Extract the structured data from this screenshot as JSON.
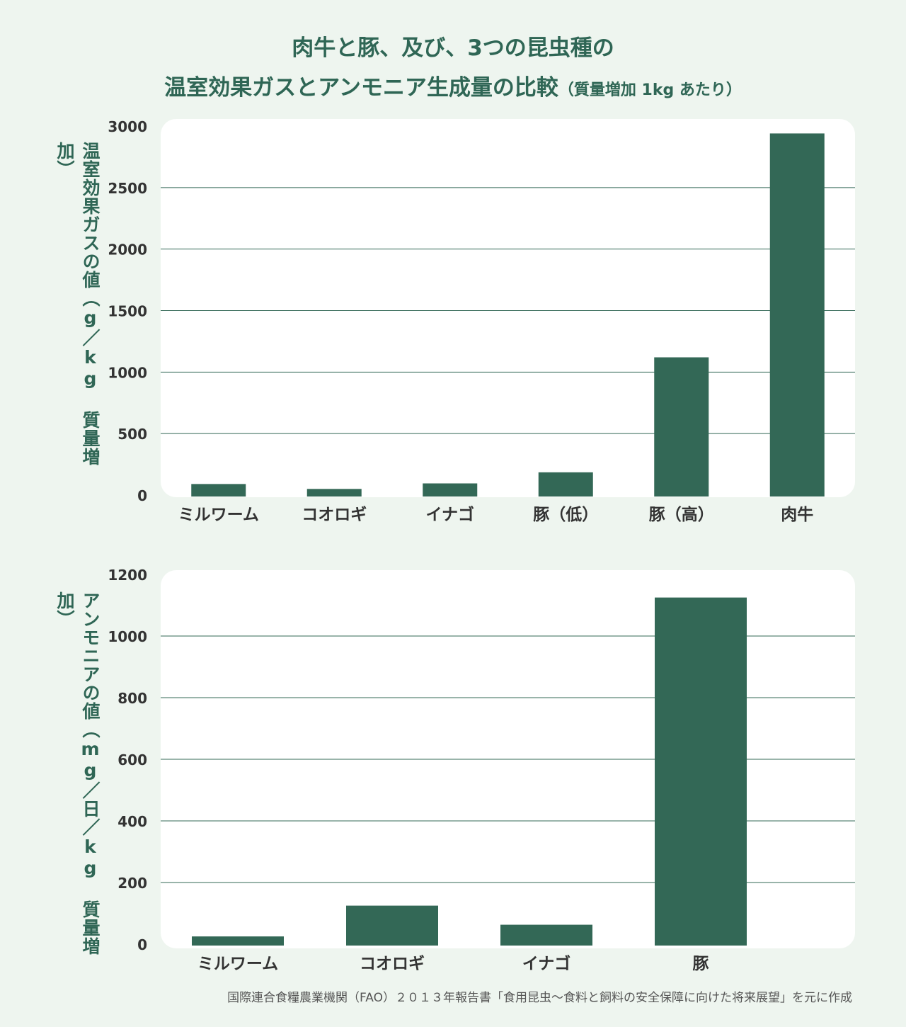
{
  "title": {
    "line1": "肉牛と豚、及び、3つの昆虫種の",
    "line2_main": "温室効果ガスとアンモニア生成量の比較",
    "line2_sub": "（質量増加 1kg あたり）"
  },
  "source": "国際連合食糧農業機関（FAO）２０１３年報告書「食用昆虫〜食料と飼料の安全保障に向けた将来展望」を元に作成",
  "colors": {
    "bar": "#336856",
    "grid": "#336856",
    "background": "#eef5ef",
    "panel": "#ffffff",
    "text": "#2f6655",
    "axis_text": "#333333"
  },
  "chart_data": [
    {
      "type": "bar",
      "ylabel": "温室効果ガスの値（g／kg 質量増加）",
      "categories": [
        "ミルワーム",
        "コオロギ",
        "イナゴ",
        "豚（低）",
        "豚（高）",
        "肉牛"
      ],
      "values": [
        90,
        50,
        95,
        185,
        1120,
        2940
      ],
      "ylim": [
        0,
        3000
      ],
      "yticks": [
        0,
        500,
        1000,
        1500,
        2000,
        2500,
        3000
      ],
      "grid": true
    },
    {
      "type": "bar",
      "ylabel": "アンモニアの値（mg／日／kg 質量増加）",
      "categories": [
        "ミルワーム",
        "コオロギ",
        "イナゴ",
        "豚"
      ],
      "values": [
        25,
        125,
        63,
        1125
      ],
      "ylim": [
        0,
        1200
      ],
      "yticks": [
        0,
        200,
        400,
        600,
        800,
        1000,
        1200
      ],
      "grid": true
    }
  ]
}
